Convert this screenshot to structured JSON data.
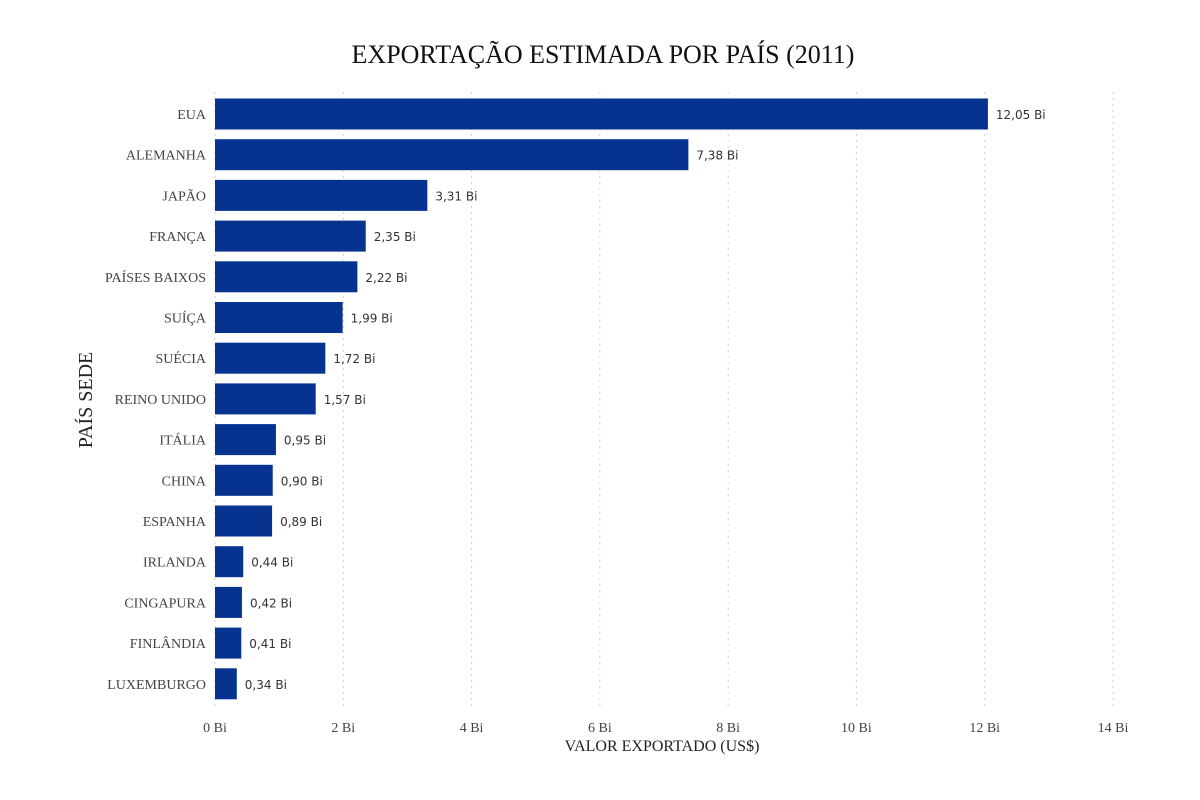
{
  "chart_data": {
    "type": "bar",
    "orientation": "horizontal",
    "title": "EXPORTAÇÃO ESTIMADA POR PAÍS (2011)",
    "xlabel": "VALOR EXPORTADO (US$)",
    "ylabel": "PAÍS SEDE",
    "categories": [
      "EUA",
      "ALEMANHA",
      "JAPÃO",
      "FRANÇA",
      "PAÍSES BAIXOS",
      "SUÍÇA",
      "SUÉCIA",
      "REINO UNIDO",
      "ITÁLIA",
      "CHINA",
      "ESPANHA",
      "IRLANDA",
      "CINGAPURA",
      "FINLÂNDIA",
      "LUXEMBURGO"
    ],
    "values": [
      12.05,
      7.38,
      3.31,
      2.35,
      2.22,
      1.99,
      1.72,
      1.57,
      0.95,
      0.9,
      0.89,
      0.44,
      0.42,
      0.41,
      0.34
    ],
    "data_labels": [
      "12,05 Bi",
      "7,38 Bi",
      "3,31 Bi",
      "2,35 Bi",
      "2,22 Bi",
      "1,99 Bi",
      "1,72 Bi",
      "1,57 Bi",
      "0,95 Bi",
      "0,90 Bi",
      "0,89 Bi",
      "0,44 Bi",
      "0,42 Bi",
      "0,41 Bi",
      "0,34 Bi"
    ],
    "xlim": [
      0,
      14
    ],
    "xticks": [
      0,
      2,
      4,
      6,
      8,
      10,
      12,
      14
    ],
    "xtick_labels": [
      "0 Bi",
      "2 Bi",
      "4 Bi",
      "6 Bi",
      "8 Bi",
      "10 Bi",
      "12 Bi",
      "14 Bi"
    ],
    "bar_color": "#06338f",
    "grid": "vertical dotted",
    "legend": "none"
  }
}
